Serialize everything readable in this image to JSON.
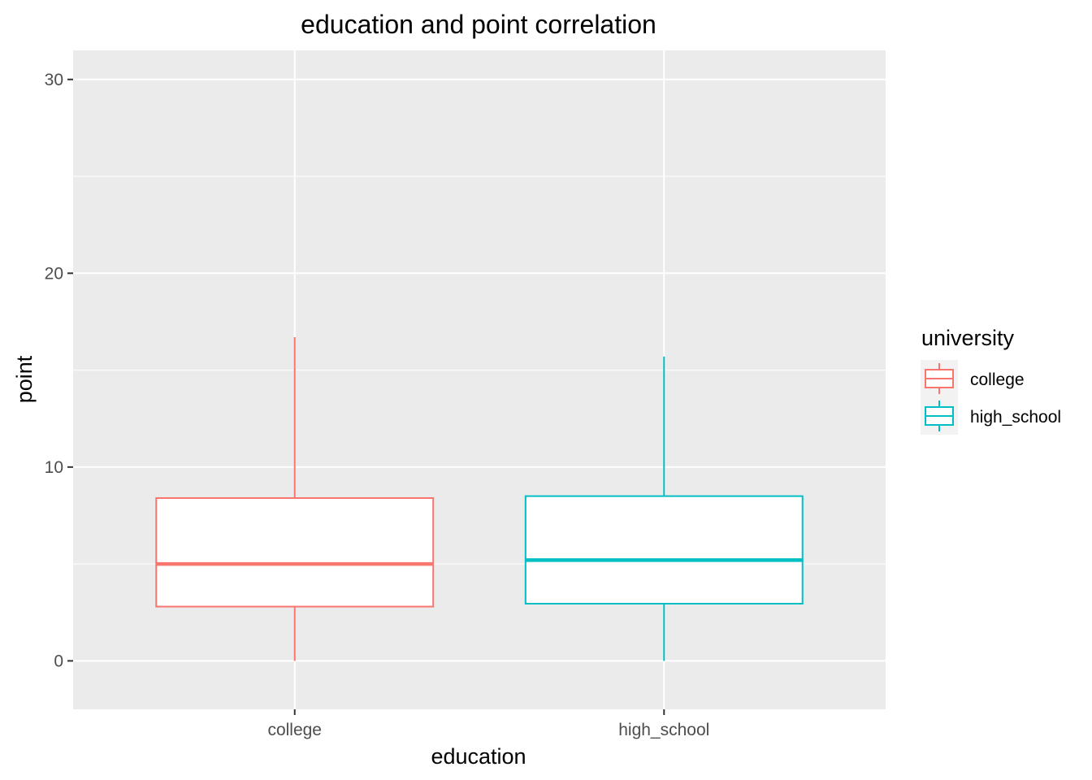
{
  "chart_data": {
    "type": "boxplot",
    "title": "education and point correlation",
    "xlabel": "education",
    "ylabel": "point",
    "categories": [
      "college",
      "high_school"
    ],
    "ylim": [
      -2.5,
      31.5
    ],
    "yticks": [
      0,
      10,
      20,
      30
    ],
    "grid": true,
    "legend": {
      "title": "university",
      "placement": "right",
      "entries": [
        "college",
        "high_school"
      ]
    },
    "series": [
      {
        "name": "college",
        "color": "#F8766D",
        "min": 0,
        "q1": 2.8,
        "median": 5.0,
        "q3": 8.4,
        "max": 16.7
      },
      {
        "name": "high_school",
        "color": "#00BFC4",
        "min": 0,
        "q1": 2.95,
        "median": 5.2,
        "q3": 8.5,
        "max": 15.7
      }
    ]
  }
}
